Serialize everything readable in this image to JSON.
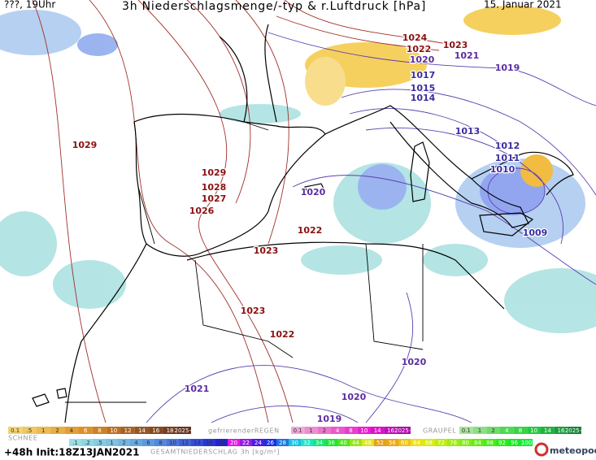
{
  "header": {
    "time": "???, 19Uhr",
    "title": "3h Niederschlagsmenge/-typ & r.Luftdruck [hPa]",
    "date": "15. Januar 2021"
  },
  "isobar_labels": [
    {
      "text": "1024",
      "color": "#8b1010"
    },
    {
      "text": "1023",
      "color": "#8b1010"
    },
    {
      "text": "1022",
      "color": "#8b1010"
    },
    {
      "text": "1021",
      "color": "#5a2ca0"
    },
    {
      "text": "1020",
      "color": "#5a2ca0"
    },
    {
      "text": "1019",
      "color": "#5a2ca0"
    },
    {
      "text": "1017",
      "color": "#3a2ca0"
    },
    {
      "text": "1015",
      "color": "#3a2ca0"
    },
    {
      "text": "1014",
      "color": "#3a2ca0"
    },
    {
      "text": "1013",
      "color": "#3a2ca0"
    },
    {
      "text": "1012",
      "color": "#3a2ca0"
    },
    {
      "text": "1011",
      "color": "#3a2ca0"
    },
    {
      "text": "1010",
      "color": "#3a2ca0"
    },
    {
      "text": "1009",
      "color": "#3a2ca0"
    },
    {
      "text": "1029",
      "color": "#8b1010"
    },
    {
      "text": "1029",
      "color": "#8b1010"
    },
    {
      "text": "1028",
      "color": "#8b1010"
    },
    {
      "text": "1027",
      "color": "#8b1010"
    },
    {
      "text": "1026",
      "color": "#8b1010"
    },
    {
      "text": "1020",
      "color": "#5a2ca0"
    },
    {
      "text": "1022",
      "color": "#8b1010"
    },
    {
      "text": "1023",
      "color": "#8b1010"
    },
    {
      "text": "1023",
      "color": "#8b1010"
    },
    {
      "text": "1022",
      "color": "#8b1010"
    },
    {
      "text": "1020",
      "color": "#5a2ca0"
    },
    {
      "text": "1021",
      "color": "#5a2ca0"
    },
    {
      "text": "1020",
      "color": "#5a2ca0"
    },
    {
      "text": "1019",
      "color": "#5a2ca0"
    }
  ],
  "legend": {
    "snow": {
      "name": "SCHNEE",
      "labels": [
        "0.1",
        ".5",
        "1",
        "2",
        "4",
        "6",
        "8",
        "10",
        "12",
        "14",
        "16",
        "18",
        "2025+"
      ]
    },
    "freezing_rain": {
      "name": "gefrierenderREGEN",
      "labels": [
        "0.1",
        "1",
        "2",
        "4",
        "8",
        "10",
        "14",
        "16",
        "2025+"
      ]
    },
    "graupel": {
      "name": "GRAUPEL",
      "labels": [
        "0.1",
        "1",
        "2",
        "4",
        "8",
        "10",
        "14",
        "16",
        "2025+"
      ]
    },
    "total": {
      "name": "GESAMTNIEDERSCHLAG 3h [kg/m²]",
      "labels": [
        ".1",
        ".2",
        ".5",
        "1",
        "2",
        "4",
        "6",
        "8",
        "10",
        "12",
        "14",
        "16",
        "18",
        "20",
        "22",
        "24",
        "26",
        "28",
        "30",
        "32",
        "34",
        "36",
        "40",
        "44",
        "48",
        "52",
        "56",
        "60",
        "64",
        "68",
        "72",
        "76",
        "80",
        "84",
        "88",
        "92",
        "96",
        "100"
      ]
    }
  },
  "footer": {
    "run": "+48h Init:18Z13JAN2021",
    "brand": "meteopool.org"
  }
}
